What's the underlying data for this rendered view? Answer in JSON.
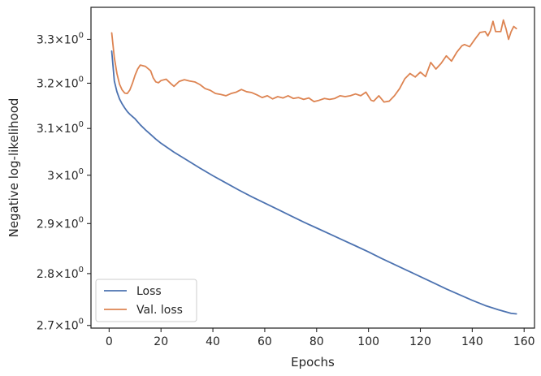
{
  "chart_data": {
    "type": "line",
    "xlabel": "Epochs",
    "ylabel": "Negative log-likelihood",
    "y_scale": "log",
    "xlim": [
      -7,
      164
    ],
    "ylim": [
      2.695,
      3.375
    ],
    "grid": false,
    "legend_position": "lower-left",
    "x_ticks": [
      0,
      20,
      40,
      60,
      80,
      100,
      120,
      140,
      160
    ],
    "x_tick_labels": [
      "0",
      "20",
      "40",
      "60",
      "80",
      "100",
      "120",
      "140",
      "160"
    ],
    "y_ticks": [
      2.7,
      2.8,
      2.9,
      3.0,
      3.1,
      3.2,
      3.3
    ],
    "y_tick_labels": [
      {
        "mantissa": "2.7",
        "base": "10",
        "exp": "0"
      },
      {
        "mantissa": "2.8",
        "base": "10",
        "exp": "0"
      },
      {
        "mantissa": "2.9",
        "base": "10",
        "exp": "0"
      },
      {
        "mantissa": "3",
        "base": "10",
        "exp": "0"
      },
      {
        "mantissa": "3.1",
        "base": "10",
        "exp": "0"
      },
      {
        "mantissa": "3.2",
        "base": "10",
        "exp": "0"
      },
      {
        "mantissa": "3.3",
        "base": "10",
        "exp": "0"
      }
    ],
    "series": [
      {
        "name": "Loss",
        "color": "#4c72b0",
        "x": [
          1,
          2,
          3,
          4,
          5,
          6,
          7,
          8,
          9,
          10,
          12,
          14,
          16,
          18,
          20,
          25,
          30,
          35,
          40,
          45,
          50,
          55,
          60,
          65,
          70,
          75,
          80,
          85,
          90,
          95,
          100,
          105,
          110,
          115,
          120,
          125,
          130,
          135,
          140,
          145,
          150,
          155,
          157
        ],
        "y": [
          3.273,
          3.205,
          3.181,
          3.165,
          3.154,
          3.145,
          3.137,
          3.131,
          3.126,
          3.121,
          3.108,
          3.097,
          3.087,
          3.077,
          3.068,
          3.049,
          3.032,
          3.015,
          2.999,
          2.984,
          2.969,
          2.955,
          2.942,
          2.929,
          2.916,
          2.903,
          2.891,
          2.879,
          2.867,
          2.855,
          2.843,
          2.83,
          2.818,
          2.806,
          2.794,
          2.782,
          2.77,
          2.759,
          2.748,
          2.738,
          2.73,
          2.723,
          2.722
        ]
      },
      {
        "name": "Val. loss",
        "color": "#dd8452",
        "x": [
          1,
          2,
          3,
          4,
          5,
          6,
          7,
          8,
          9,
          10,
          11,
          12,
          14,
          16,
          17,
          18,
          19,
          20,
          22,
          24,
          25,
          27,
          29,
          31,
          33,
          35,
          37,
          39,
          41,
          43,
          45,
          47,
          49,
          51,
          53,
          55,
          57,
          59,
          61,
          63,
          65,
          67,
          69,
          71,
          73,
          75,
          77,
          79,
          81,
          83,
          85,
          87,
          89,
          91,
          93,
          95,
          97,
          99,
          101,
          102,
          104,
          106,
          108,
          110,
          112,
          114,
          116,
          118,
          120,
          122,
          124,
          126,
          128,
          130,
          132,
          134,
          136,
          137,
          139,
          141,
          143,
          145,
          146,
          147,
          148,
          149,
          150,
          151,
          152,
          153,
          154,
          155,
          156,
          157
        ],
        "y": [
          3.315,
          3.258,
          3.222,
          3.198,
          3.185,
          3.178,
          3.177,
          3.185,
          3.2,
          3.218,
          3.232,
          3.241,
          3.238,
          3.228,
          3.212,
          3.203,
          3.201,
          3.206,
          3.209,
          3.198,
          3.193,
          3.204,
          3.208,
          3.205,
          3.203,
          3.197,
          3.188,
          3.184,
          3.177,
          3.175,
          3.172,
          3.177,
          3.18,
          3.186,
          3.181,
          3.179,
          3.174,
          3.168,
          3.172,
          3.165,
          3.17,
          3.167,
          3.172,
          3.166,
          3.168,
          3.164,
          3.167,
          3.159,
          3.162,
          3.166,
          3.164,
          3.166,
          3.172,
          3.17,
          3.172,
          3.176,
          3.172,
          3.18,
          3.162,
          3.16,
          3.172,
          3.158,
          3.16,
          3.172,
          3.188,
          3.21,
          3.222,
          3.214,
          3.225,
          3.215,
          3.247,
          3.232,
          3.245,
          3.262,
          3.25,
          3.27,
          3.285,
          3.288,
          3.283,
          3.3,
          3.316,
          3.318,
          3.308,
          3.32,
          3.342,
          3.318,
          3.318,
          3.318,
          3.345,
          3.325,
          3.3,
          3.318,
          3.33,
          3.325
        ]
      }
    ]
  }
}
